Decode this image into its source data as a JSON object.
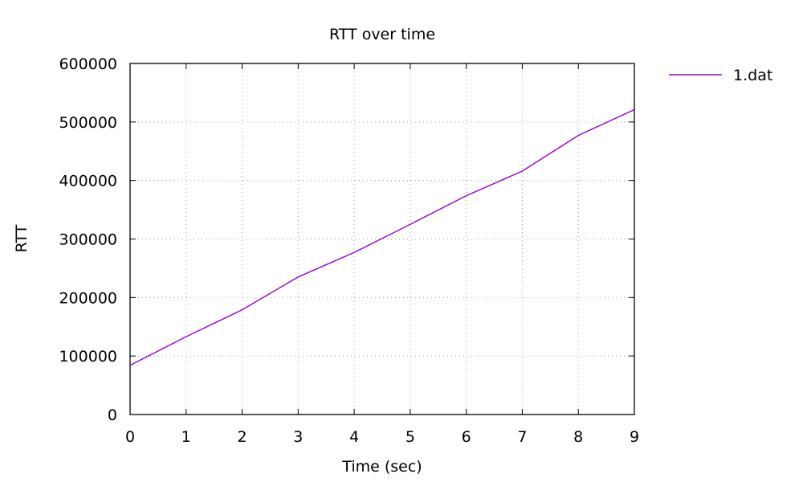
{
  "chart_data": {
    "type": "line",
    "title": "RTT over time",
    "xlabel": "Time (sec)",
    "ylabel": "RTT",
    "xlim": [
      0,
      9
    ],
    "ylim": [
      0,
      600000
    ],
    "xticks": [
      "0",
      "1",
      "2",
      "3",
      "4",
      "5",
      "6",
      "7",
      "8",
      "9"
    ],
    "yticks": [
      "0",
      "100000",
      "200000",
      "300000",
      "400000",
      "500000",
      "600000"
    ],
    "grid": true,
    "legend_position": "outside-top-right",
    "series": [
      {
        "name": "1.dat",
        "color": "#9400d3",
        "x": [
          0,
          1,
          2,
          3,
          4,
          5,
          6,
          7,
          8,
          9
        ],
        "y": [
          84000,
          133000,
          179000,
          235000,
          277000,
          325000,
          374000,
          416000,
          477000,
          521000
        ]
      }
    ]
  }
}
